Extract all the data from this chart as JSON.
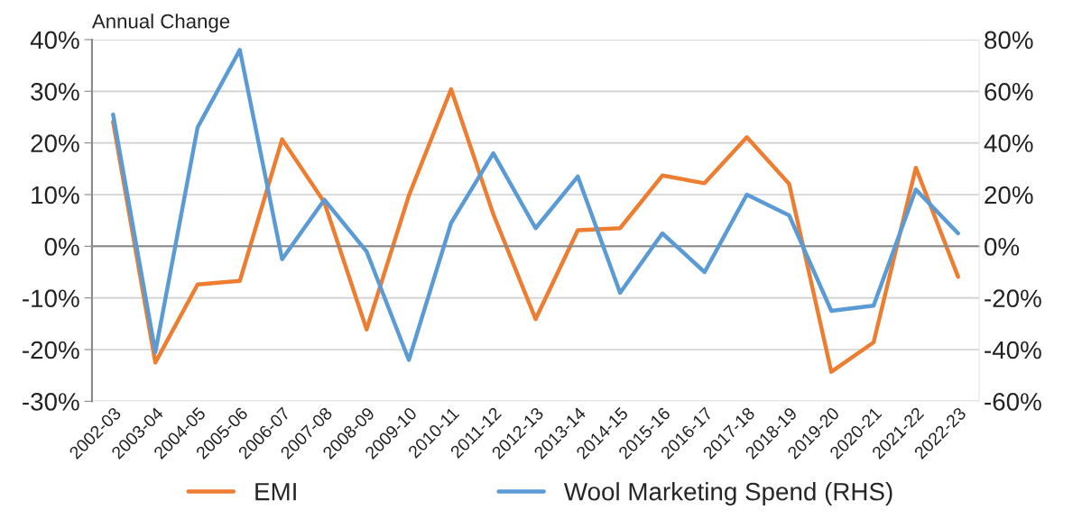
{
  "chart_data": {
    "type": "line",
    "ylabel": "Annual Change",
    "categories": [
      "2002-03",
      "2003-04",
      "2004-05",
      "2005-06",
      "2006-07",
      "2007-08",
      "2008-09",
      "2009-10",
      "2010-11",
      "2011-12",
      "2012-13",
      "2013-14",
      "2014-15",
      "2015-16",
      "2016-17",
      "2017-18",
      "2018-19",
      "2019-20",
      "2020-21",
      "2021-22",
      "2022-23"
    ],
    "series": [
      {
        "name": "EMI",
        "color": "#ed7d31",
        "values": [
          24.1,
          -22.5,
          -7.4,
          -6.7,
          20.7,
          8.5,
          -16.1,
          9.8,
          30.4,
          6.2,
          -14.1,
          3.1,
          3.5,
          13.7,
          12.2,
          21.1,
          12.1,
          -24.3,
          -18.6,
          15.2,
          -5.9
        ]
      },
      {
        "name": "Wool Marketing Spend (RHS)",
        "color": "#5b9bd5",
        "axis": "y2",
        "values": [
          51,
          -41,
          46,
          76,
          -5,
          18,
          -2,
          -44,
          9,
          36,
          7,
          27,
          -18,
          5,
          -10,
          20,
          12,
          -25,
          -23,
          22,
          5
        ]
      }
    ],
    "ylim": [
      -30,
      40
    ],
    "yticks": [
      {
        "value": -30,
        "label": "-30%"
      },
      {
        "value": -20,
        "label": "-20%"
      },
      {
        "value": -10,
        "label": "-10%"
      },
      {
        "value": 0,
        "label": "0%"
      },
      {
        "value": 10,
        "label": "10%"
      },
      {
        "value": 20,
        "label": "20%"
      },
      {
        "value": 30,
        "label": "30%"
      },
      {
        "value": 40,
        "label": "40%"
      }
    ],
    "y2lim": [
      -60,
      80
    ],
    "y2ticks": [
      {
        "value": -60,
        "label": "-60%"
      },
      {
        "value": -40,
        "label": "-40%"
      },
      {
        "value": -20,
        "label": "-20%"
      },
      {
        "value": 0,
        "label": "0%"
      },
      {
        "value": 20,
        "label": "20%"
      },
      {
        "value": 40,
        "label": "40%"
      },
      {
        "value": 60,
        "label": "60%"
      },
      {
        "value": 80,
        "label": "80%"
      }
    ],
    "grid": "y",
    "legend": "bottom",
    "marker": "none",
    "line_style": "solid"
  }
}
